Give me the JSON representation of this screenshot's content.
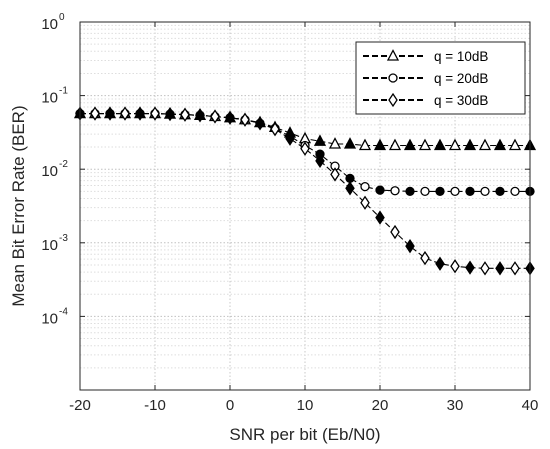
{
  "chart_data": {
    "type": "line",
    "title": "",
    "xlabel": "SNR per bit (Eb/N0)",
    "ylabel": "Mean Bit Error Rate (BER)",
    "xlim": [
      -20,
      40
    ],
    "ylim": [
      1e-05,
      1
    ],
    "yscale": "log",
    "grid": true,
    "minor_grid": true,
    "legend_position": "top-right",
    "x_ticks": [
      -20,
      -10,
      0,
      10,
      20,
      30,
      40
    ],
    "x_tick_labels": [
      "-20",
      "-10",
      "0",
      "10",
      "20",
      "30",
      "40"
    ],
    "y_ticks": [
      0.0001,
      0.001,
      0.01,
      0.1,
      1
    ],
    "y_tick_labels": [
      {
        "base": "10",
        "exp": "-4"
      },
      {
        "base": "10",
        "exp": "-3"
      },
      {
        "base": "10",
        "exp": "-2"
      },
      {
        "base": "10",
        "exp": "-1"
      },
      {
        "base": "10",
        "exp": "0"
      }
    ],
    "x": [
      -20,
      -18,
      -16,
      -14,
      -12,
      -10,
      -8,
      -6,
      -4,
      -2,
      0,
      2,
      4,
      6,
      8,
      10,
      12,
      14,
      16,
      18,
      20,
      22,
      24,
      26,
      28,
      30,
      32,
      34,
      36,
      38,
      40
    ],
    "series": [
      {
        "name": "q = 10dB",
        "marker": "triangle",
        "values": [
          0.057,
          0.057,
          0.057,
          0.057,
          0.057,
          0.057,
          0.056,
          0.055,
          0.054,
          0.052,
          0.05,
          0.047,
          0.043,
          0.037,
          0.031,
          0.026,
          0.024,
          0.022,
          0.022,
          0.021,
          0.021,
          0.021,
          0.021,
          0.021,
          0.021,
          0.021,
          0.021,
          0.021,
          0.021,
          0.021,
          0.021
        ]
      },
      {
        "name": "q = 20dB",
        "marker": "circle",
        "values": [
          0.057,
          0.057,
          0.057,
          0.057,
          0.057,
          0.057,
          0.056,
          0.055,
          0.054,
          0.052,
          0.05,
          0.047,
          0.042,
          0.036,
          0.028,
          0.021,
          0.016,
          0.011,
          0.0075,
          0.0058,
          0.0052,
          0.0051,
          0.005,
          0.005,
          0.005,
          0.005,
          0.005,
          0.005,
          0.005,
          0.005,
          0.005
        ]
      },
      {
        "name": "q = 30dB",
        "marker": "diamond",
        "values": [
          0.057,
          0.057,
          0.057,
          0.057,
          0.057,
          0.057,
          0.056,
          0.055,
          0.054,
          0.052,
          0.05,
          0.047,
          0.042,
          0.035,
          0.026,
          0.019,
          0.013,
          0.0085,
          0.0055,
          0.0035,
          0.0022,
          0.0014,
          0.0009,
          0.00062,
          0.00052,
          0.00048,
          0.00046,
          0.00045,
          0.00045,
          0.00045,
          0.00045
        ]
      }
    ]
  }
}
